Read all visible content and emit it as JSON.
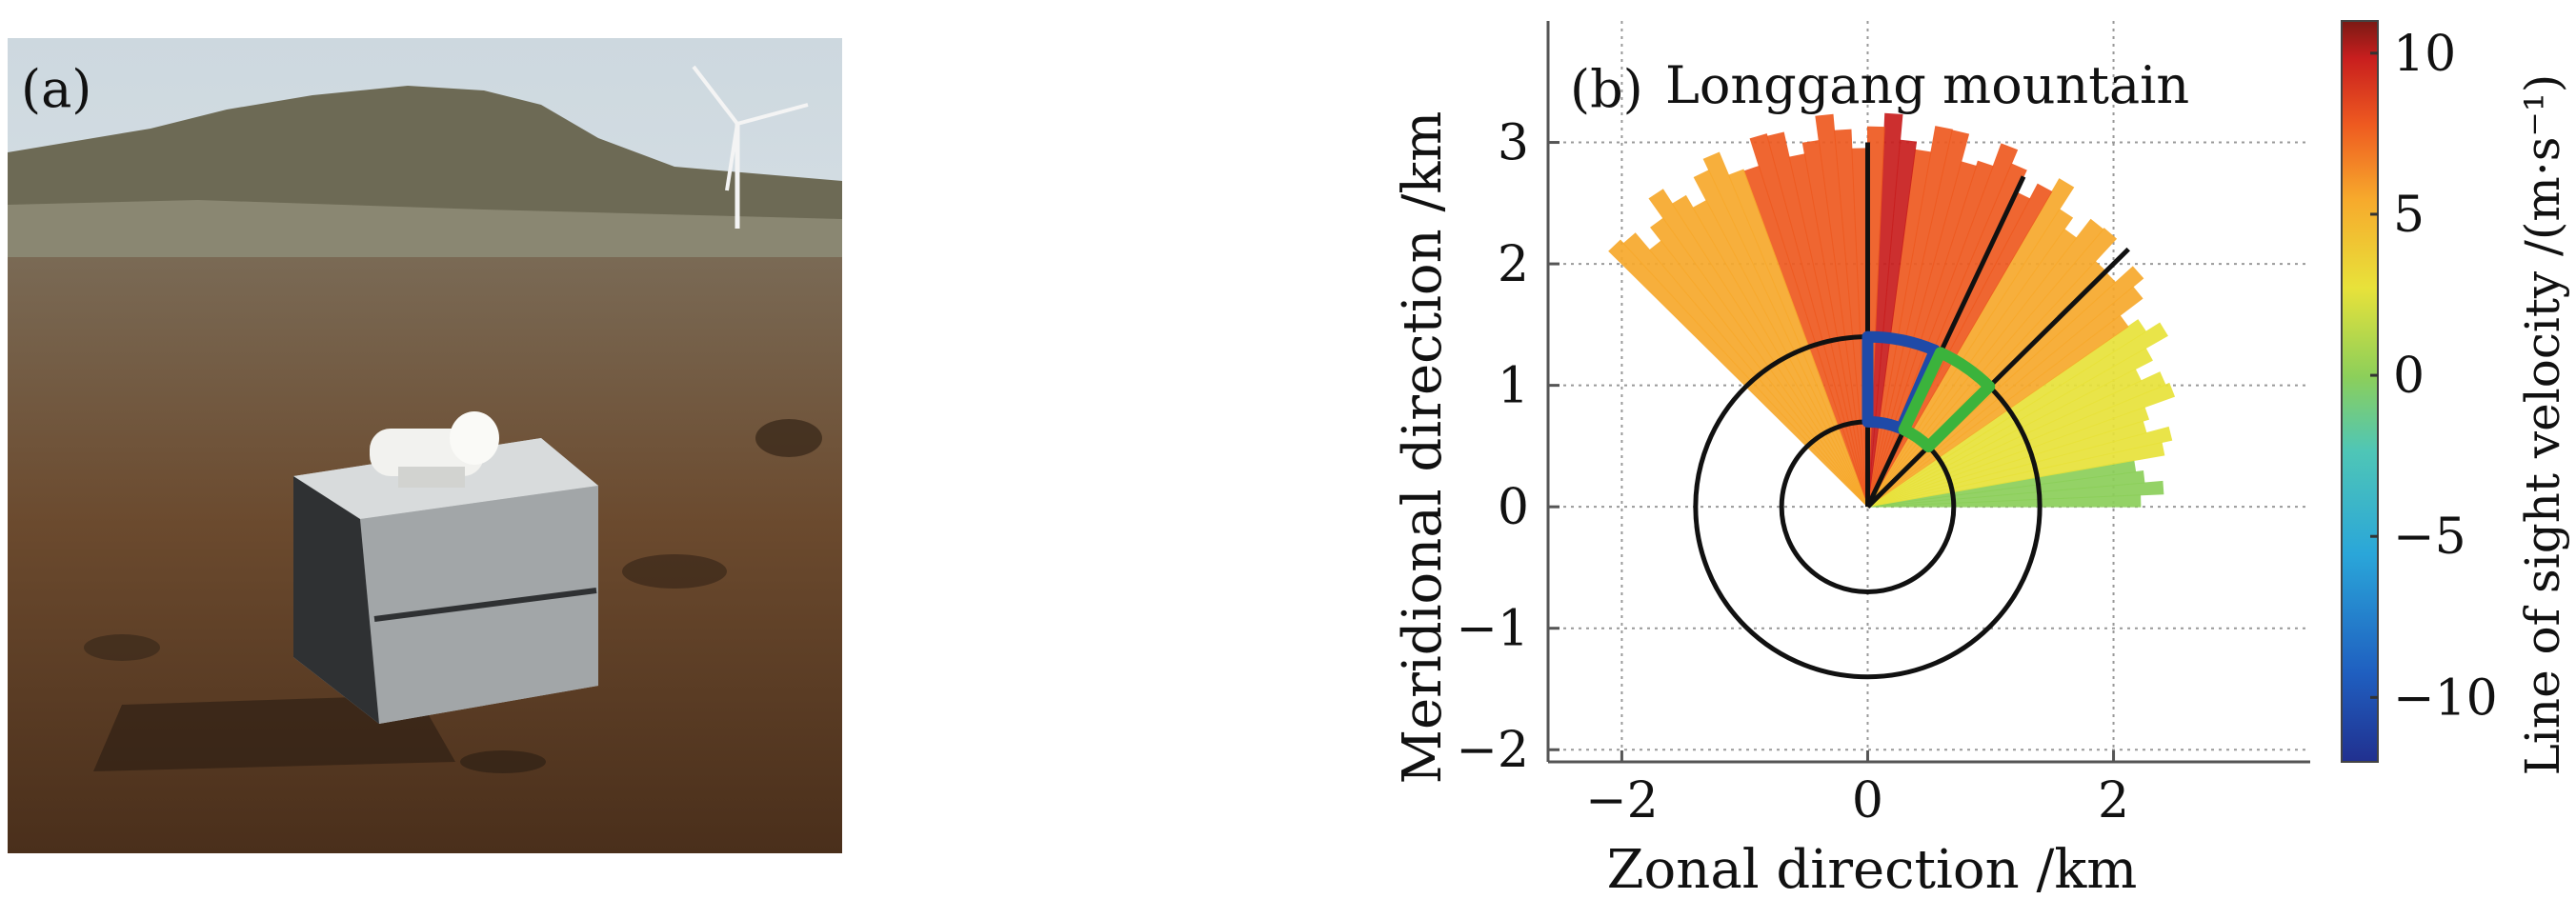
{
  "panel_a": {
    "label": "(a)",
    "photo_icon": "lidar-field-photo"
  },
  "chart_data": {
    "type": "heatmap",
    "panel_label": "(b)",
    "title": "Longgang mountain",
    "xlabel": "Zonal direction /km",
    "ylabel": "Meridional direction /km",
    "colorbar_label": "Line of sight velocity /(m·s⁻¹)",
    "xlim": [
      -2.6,
      3.6
    ],
    "ylim": [
      -2.1,
      4.0
    ],
    "x_ticks": [
      -2,
      0,
      2
    ],
    "y_ticks": [
      -2,
      -1,
      0,
      1,
      2,
      3
    ],
    "x_tick_labels": [
      "−2",
      "0",
      "2"
    ],
    "y_tick_labels": [
      "−2",
      "−1",
      "0",
      "1",
      "2",
      "3"
    ],
    "colorbar_range": [
      -12,
      11
    ],
    "colorbar_ticks": [
      10,
      5,
      0,
      -5,
      -10
    ],
    "colorbar_tick_labels": [
      "10",
      "5",
      "0",
      "−5",
      "−10"
    ],
    "grid": true,
    "scan_sector_deg": [
      0,
      135
    ],
    "range_rings_km": [
      0.7,
      1.4
    ],
    "radial_lines": [
      {
        "azimuth_deg": 90,
        "length_km": 3.0
      },
      {
        "azimuth_deg": 65,
        "length_km": 3.0
      },
      {
        "azimuth_deg": 45,
        "length_km": 3.0
      }
    ],
    "highlight_sectors": [
      {
        "color": "#1f4aa8",
        "azimuth_from_deg": 67,
        "azimuth_to_deg": 90,
        "r_inner_km": 0.7,
        "r_outer_km": 1.4
      },
      {
        "color": "#3bb33c",
        "azimuth_from_deg": 45,
        "azimuth_to_deg": 65,
        "r_inner_km": 0.7,
        "r_outer_km": 1.4
      }
    ],
    "colormap": [
      "#21308f",
      "#1f5fc0",
      "#2aa6d9",
      "#4fc6b6",
      "#8ccf5a",
      "#e8e23a",
      "#f7a92c",
      "#ee5a20",
      "#c81e1e",
      "#7a1a14"
    ]
  }
}
